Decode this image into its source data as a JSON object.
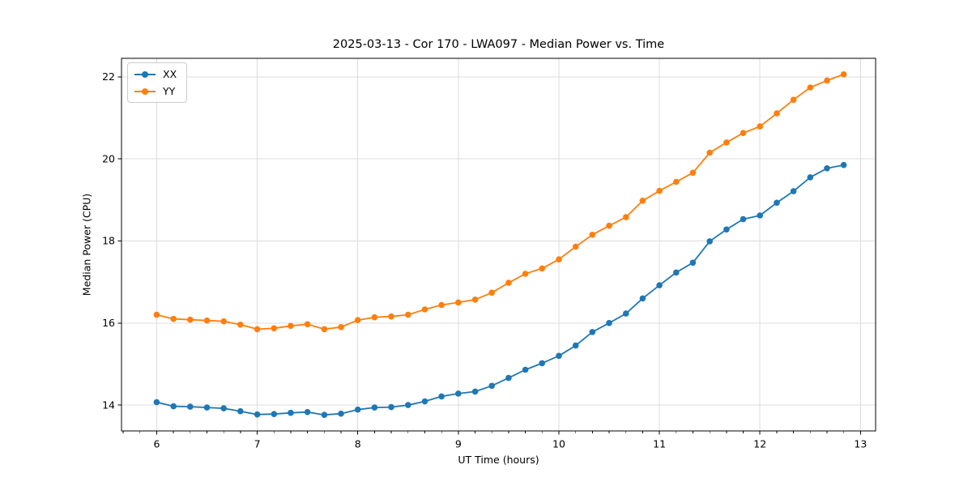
{
  "chart_data": {
    "type": "line",
    "title": "2025-03-13 - Cor 170 - LWA097 - Median Power vs. Time",
    "xlabel": "UT Time (hours)",
    "ylabel": "Median Power (CPU)",
    "xlim": [
      5.65,
      13.15
    ],
    "ylim": [
      13.37,
      22.45
    ],
    "xticks": [
      6,
      7,
      8,
      9,
      10,
      11,
      12,
      13
    ],
    "yticks": [
      14,
      16,
      18,
      20,
      22
    ],
    "x_minor_step": 0.16667,
    "grid": true,
    "grid_color": "#dcdcdc",
    "legend_position": "upper left",
    "x": [
      6.0,
      6.167,
      6.333,
      6.5,
      6.667,
      6.833,
      7.0,
      7.167,
      7.333,
      7.5,
      7.667,
      7.833,
      8.0,
      8.167,
      8.333,
      8.5,
      8.667,
      8.833,
      9.0,
      9.167,
      9.333,
      9.5,
      9.667,
      9.833,
      10.0,
      10.167,
      10.333,
      10.5,
      10.667,
      10.833,
      11.0,
      11.167,
      11.333,
      11.5,
      11.667,
      11.833,
      12.0,
      12.167,
      12.333,
      12.5,
      12.667,
      12.833
    ],
    "series": [
      {
        "name": "XX",
        "color": "#1f77b4",
        "values": [
          14.07,
          13.97,
          13.96,
          13.94,
          13.92,
          13.85,
          13.77,
          13.78,
          13.81,
          13.83,
          13.76,
          13.79,
          13.89,
          13.94,
          13.95,
          14.0,
          14.09,
          14.21,
          14.28,
          14.33,
          14.47,
          14.66,
          14.86,
          15.02,
          15.2,
          15.45,
          15.78,
          16.0,
          16.23,
          16.6,
          16.92,
          17.23,
          17.47,
          17.99,
          18.28,
          18.53,
          18.62,
          18.93,
          19.21,
          19.55,
          19.77,
          19.85
        ]
      },
      {
        "name": "YY",
        "color": "#ff7f0e",
        "values": [
          16.2,
          16.1,
          16.08,
          16.06,
          16.04,
          15.96,
          15.85,
          15.87,
          15.93,
          15.97,
          15.85,
          15.9,
          16.07,
          16.14,
          16.16,
          16.2,
          16.33,
          16.44,
          16.5,
          16.57,
          16.74,
          16.98,
          17.2,
          17.33,
          17.55,
          17.86,
          18.15,
          18.37,
          18.58,
          18.98,
          19.22,
          19.44,
          19.66,
          20.15,
          20.4,
          20.63,
          20.79,
          21.11,
          21.44,
          21.74,
          21.91,
          22.06
        ]
      }
    ]
  }
}
